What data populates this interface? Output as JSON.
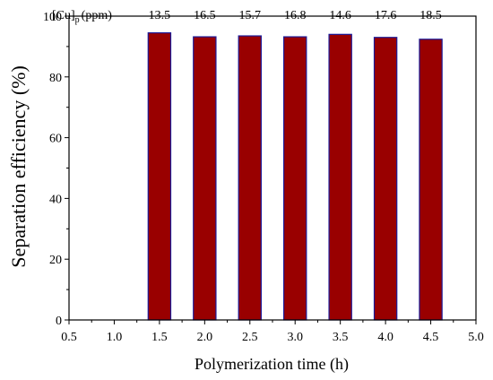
{
  "chart_data": {
    "type": "bar",
    "title": "",
    "xlabel": "Polymerization time (h)",
    "ylabel": "Separation efficiency (%)",
    "xlim": [
      0.5,
      5.0
    ],
    "ylim": [
      0,
      100
    ],
    "x_ticks": [
      "0.5",
      "1.0",
      "1.5",
      "2.0",
      "2.5",
      "3.0",
      "3.5",
      "4.0",
      "4.5",
      "5.0"
    ],
    "y_ticks": [
      "0",
      "20",
      "40",
      "60",
      "80",
      "100"
    ],
    "x": [
      1.5,
      2.0,
      2.5,
      3.0,
      3.5,
      4.0,
      4.5
    ],
    "values": [
      94.5,
      93.2,
      93.5,
      93.2,
      94.0,
      93.0,
      92.4
    ],
    "annotation_label": "[Cu]p (ppm)",
    "annotation_label_parts": {
      "main": "[Cu]",
      "sub": "p",
      "tail": "(ppm)"
    },
    "data_labels": [
      "13.5",
      "16.5",
      "15.7",
      "16.8",
      "14.6",
      "17.6",
      "18.5"
    ],
    "grid": false,
    "colors": {
      "bar_fill": "#990000",
      "bar_edge": "#1a1a99"
    }
  }
}
